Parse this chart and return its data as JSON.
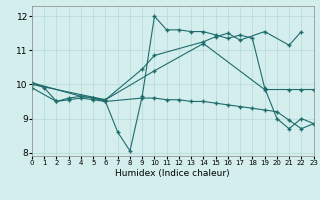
{
  "bg_color": "#d4eeee",
  "grid_color": "#b8d8d8",
  "line_color": "#1e6b6b",
  "xlabel": "Humidex (Indice chaleur)",
  "xlim": [
    0,
    23
  ],
  "ylim": [
    7.9,
    12.3
  ],
  "yticks": [
    8,
    9,
    10,
    11,
    12
  ],
  "xticks": [
    0,
    1,
    2,
    3,
    4,
    5,
    6,
    7,
    8,
    9,
    10,
    11,
    12,
    13,
    14,
    15,
    16,
    17,
    18,
    19,
    20,
    21,
    22,
    23
  ],
  "series1_x": [
    0,
    1,
    2,
    3,
    4,
    5,
    6,
    7,
    8,
    9,
    10,
    11,
    12,
    13,
    14,
    15,
    16,
    17,
    18,
    19,
    20,
    21,
    22,
    23
  ],
  "series1_y": [
    10.05,
    9.9,
    9.5,
    9.6,
    9.65,
    9.6,
    9.5,
    8.6,
    8.05,
    9.65,
    12.0,
    11.6,
    11.6,
    11.55,
    11.55,
    11.45,
    11.35,
    11.45,
    11.35,
    9.9,
    9.0,
    8.7,
    9.0,
    8.85
  ],
  "series2_x": [
    0,
    4,
    5,
    6,
    9,
    10,
    14,
    15,
    16,
    17,
    19,
    21,
    22
  ],
  "series2_y": [
    10.05,
    9.65,
    9.6,
    9.55,
    10.45,
    10.85,
    11.25,
    11.4,
    11.5,
    11.3,
    11.55,
    11.15,
    11.55
  ],
  "series3_x": [
    0,
    6,
    10,
    14,
    19,
    21,
    22,
    23
  ],
  "series3_y": [
    10.0,
    9.55,
    10.4,
    11.2,
    9.85,
    9.85,
    9.85,
    9.85
  ],
  "series4_x": [
    0,
    2,
    3,
    4,
    5,
    6,
    9,
    10,
    11,
    12,
    13,
    14,
    15,
    16,
    17,
    18,
    19,
    20,
    21,
    22,
    23
  ],
  "series4_y": [
    9.9,
    9.5,
    9.55,
    9.6,
    9.55,
    9.5,
    9.6,
    9.6,
    9.55,
    9.55,
    9.5,
    9.5,
    9.45,
    9.4,
    9.35,
    9.3,
    9.25,
    9.2,
    8.95,
    8.7,
    8.85
  ]
}
